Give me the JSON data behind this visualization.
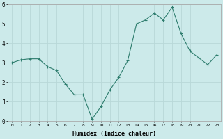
{
  "x": [
    0,
    1,
    2,
    3,
    4,
    5,
    6,
    7,
    8,
    9,
    10,
    11,
    12,
    13,
    14,
    15,
    16,
    17,
    18,
    19,
    20,
    21,
    22,
    23
  ],
  "y": [
    3.0,
    3.15,
    3.2,
    3.2,
    2.8,
    2.6,
    1.9,
    1.35,
    1.35,
    0.1,
    0.75,
    1.6,
    2.25,
    3.1,
    5.0,
    5.2,
    5.55,
    5.2,
    5.85,
    4.5,
    3.6,
    3.25,
    2.9,
    3.4
  ],
  "xlabel": "Humidex (Indice chaleur)",
  "line_color": "#2e7d6e",
  "marker_color": "#2e7d6e",
  "bg_color": "#cceaea",
  "grid_color": "#b8d8d8",
  "xlim": [
    -0.5,
    23.5
  ],
  "ylim": [
    0,
    6
  ],
  "yticks": [
    0,
    1,
    2,
    3,
    4,
    5,
    6
  ],
  "xticks": [
    0,
    1,
    2,
    3,
    4,
    5,
    6,
    7,
    8,
    9,
    10,
    11,
    12,
    13,
    14,
    15,
    16,
    17,
    18,
    19,
    20,
    21,
    22,
    23
  ]
}
